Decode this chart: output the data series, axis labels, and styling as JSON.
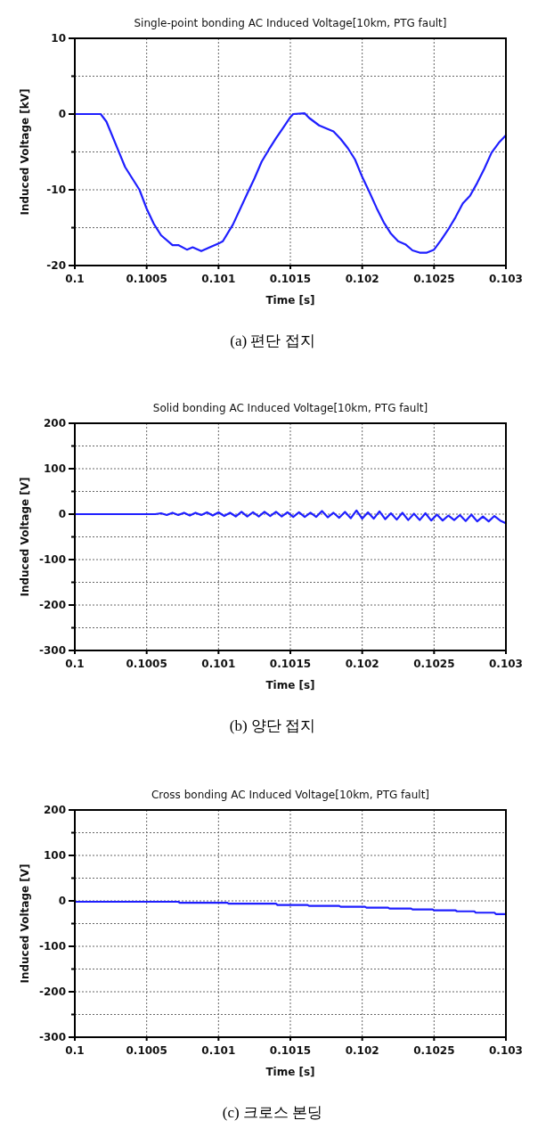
{
  "chart_data": [
    {
      "type": "line",
      "title": "Single-point bonding AC Induced Voltage[10km, PTG fault]",
      "xlabel": "Time [s]",
      "ylabel": "Induced Voltage [kV]",
      "annotations": [
        "(a) 편단 접지"
      ],
      "grid": true,
      "xlim": [
        0.1,
        0.103
      ],
      "ylim": [
        -20,
        10
      ],
      "xticks": [
        0.1,
        0.1005,
        0.101,
        0.1015,
        0.102,
        0.1025,
        0.103
      ],
      "yticks": [
        -20,
        {
          "value": -15,
          "label": null
        },
        -10,
        {
          "value": -5,
          "label": null
        },
        0,
        {
          "value": 5,
          "label": null
        },
        10
      ],
      "x": [
        0.1,
        0.10018,
        0.10022,
        0.1003,
        0.10035,
        0.1004,
        0.10045,
        0.1005,
        0.10055,
        0.1006,
        0.10068,
        0.10072,
        0.10078,
        0.10082,
        0.10088,
        0.10095,
        0.101,
        0.10103,
        0.1011,
        0.1012,
        0.10125,
        0.1013,
        0.10135,
        0.1014,
        0.10145,
        0.1015,
        0.10152,
        0.1016,
        0.10163,
        0.1017,
        0.1018,
        0.10185,
        0.1019,
        0.10195,
        0.102,
        0.10205,
        0.1021,
        0.10215,
        0.1022,
        0.10225,
        0.1023,
        0.10235,
        0.1024,
        0.10245,
        0.1025,
        0.10255,
        0.1026,
        0.10265,
        0.1027,
        0.10275,
        0.1028,
        0.10285,
        0.1029,
        0.10295,
        0.103
      ],
      "series": [
        {
          "color": "#1f1fff",
          "values": [
            0,
            0,
            -1,
            -4.7,
            -7,
            -8.5,
            -10,
            -12.5,
            -14.5,
            -16,
            -17.3,
            -17.3,
            -17.9,
            -17.6,
            -18.1,
            -17.5,
            -17.1,
            -16.8,
            -14.6,
            -10.5,
            -8.5,
            -6.3,
            -4.7,
            -3.2,
            -1.8,
            -0.4,
            0,
            0.1,
            -0.5,
            -1.5,
            -2.3,
            -3.3,
            -4.5,
            -6,
            -8.3,
            -10.3,
            -12.4,
            -14.3,
            -15.8,
            -16.8,
            -17.2,
            -18,
            -18.3,
            -18.3,
            -17.9,
            -16.6,
            -15.2,
            -13.6,
            -11.8,
            -10.8,
            -9.1,
            -7.2,
            -5.1,
            -3.8,
            -2.8
          ]
        }
      ]
    },
    {
      "type": "line",
      "title": "Solid bonding AC Induced Voltage[10km, PTG fault]",
      "xlabel": "Time [s]",
      "ylabel": "Induced Voltage [V]",
      "annotations": [
        "(b) 양단 접지"
      ],
      "grid": true,
      "xlim": [
        0.1,
        0.103
      ],
      "ylim": [
        -300,
        200
      ],
      "xticks": [
        0.1,
        0.1005,
        0.101,
        0.1015,
        0.102,
        0.1025,
        0.103
      ],
      "yticks": [
        -300,
        {
          "value": -250,
          "label": null
        },
        -200,
        {
          "value": -150,
          "label": null
        },
        -100,
        {
          "value": -50,
          "label": null
        },
        0,
        {
          "value": 50,
          "label": null
        },
        100,
        {
          "value": 150,
          "label": null
        },
        200
      ],
      "x": [
        0.1,
        0.10056,
        0.1006,
        0.10064,
        0.10068,
        0.10072,
        0.10076,
        0.1008,
        0.10084,
        0.10088,
        0.10092,
        0.10096,
        0.101,
        0.10104,
        0.10108,
        0.10112,
        0.10116,
        0.1012,
        0.10124,
        0.10128,
        0.10132,
        0.10136,
        0.1014,
        0.10144,
        0.10148,
        0.10152,
        0.10156,
        0.1016,
        0.10164,
        0.10168,
        0.10172,
        0.10176,
        0.1018,
        0.10184,
        0.10188,
        0.10192,
        0.10196,
        0.102,
        0.10204,
        0.10208,
        0.10212,
        0.10216,
        0.1022,
        0.10224,
        0.10228,
        0.10232,
        0.10236,
        0.1024,
        0.10244,
        0.10248,
        0.10252,
        0.10256,
        0.1026,
        0.10264,
        0.10268,
        0.10272,
        0.10276,
        0.1028,
        0.10284,
        0.10288,
        0.10292,
        0.10296,
        0.103
      ],
      "series": [
        {
          "color": "#1f1fff",
          "values": [
            0,
            0,
            2,
            -2,
            3,
            -2,
            3,
            -3,
            3,
            -2,
            4,
            -3,
            4,
            -4,
            3,
            -5,
            5,
            -5,
            4,
            -5,
            5,
            -4,
            5,
            -5,
            4,
            -6,
            4,
            -6,
            3,
            -6,
            7,
            -7,
            3,
            -8,
            5,
            -9,
            8,
            -10,
            4,
            -10,
            6,
            -11,
            2,
            -12,
            3,
            -13,
            1,
            -13,
            2,
            -14,
            -1,
            -14,
            -3,
            -13,
            -2,
            -15,
            -1,
            -16,
            -5,
            -16,
            -4,
            -14,
            -20
          ]
        }
      ]
    },
    {
      "type": "line",
      "title": "Cross bonding AC Induced Voltage[10km, PTG fault]",
      "xlabel": "Time [s]",
      "ylabel": "Induced Voltage [V]",
      "annotations": [
        "(c) 크로스 본딩"
      ],
      "grid": true,
      "xlim": [
        0.1,
        0.103
      ],
      "ylim": [
        -300,
        200
      ],
      "xticks": [
        0.1,
        0.1005,
        0.101,
        0.1015,
        0.102,
        0.1025,
        0.103
      ],
      "yticks": [
        -300,
        {
          "value": -250,
          "label": null
        },
        -200,
        {
          "value": -150,
          "label": null
        },
        -100,
        {
          "value": -50,
          "label": null
        },
        0,
        {
          "value": 50,
          "label": null
        },
        100,
        {
          "value": 150,
          "label": null
        },
        200
      ],
      "x": [
        0.1,
        0.10072,
        0.10073,
        0.10106,
        0.10107,
        0.1014,
        0.10141,
        0.10162,
        0.10163,
        0.10184,
        0.10185,
        0.10202,
        0.10203,
        0.10218,
        0.10219,
        0.10234,
        0.10235,
        0.10249,
        0.1025,
        0.10265,
        0.10266,
        0.10278,
        0.10279,
        0.10292,
        0.10293,
        0.103
      ],
      "series": [
        {
          "color": "#1f1fff",
          "values": [
            -2,
            -2,
            -4,
            -4,
            -6,
            -6,
            -9,
            -9,
            -11,
            -11,
            -13,
            -13,
            -15,
            -15,
            -17,
            -17,
            -19,
            -19,
            -21,
            -21,
            -23,
            -23,
            -26,
            -26,
            -29,
            -29
          ]
        }
      ]
    }
  ]
}
